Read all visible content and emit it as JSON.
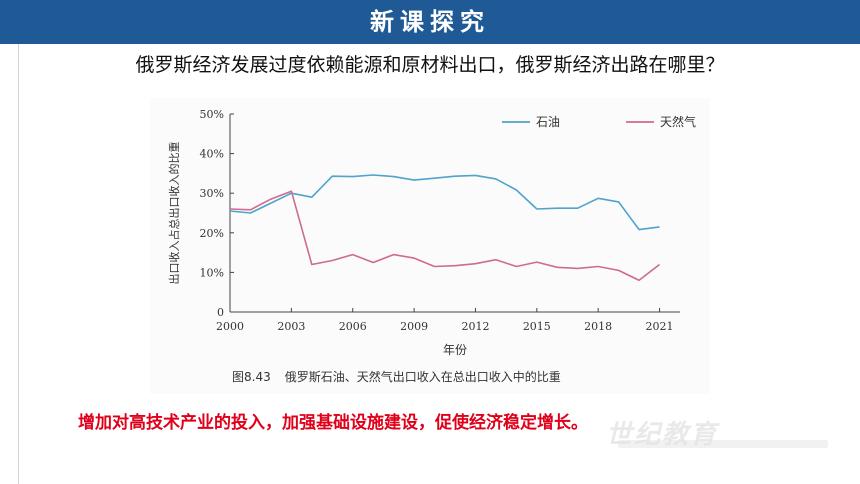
{
  "header": {
    "title": "新课探究"
  },
  "question": "俄罗斯经济发展过度依赖能源和原材料出口，俄罗斯经济出路在哪里？",
  "figure": {
    "number": "图8.43",
    "caption": "俄罗斯石油、天然气出口收入在总出口收入中的比重"
  },
  "conclusion": "增加对高技术产业的投入，加强基础设施建设，促使经济稳定增长。",
  "colors": {
    "banner": "#1f5a96",
    "oil": "#4fa3cc",
    "gas": "#cf6a93",
    "conclusion": "#e0001a"
  },
  "chart_data": {
    "type": "line",
    "xlabel": "年份",
    "ylabel": "出口收入占总出口收入的比重",
    "xlim": [
      2000,
      2022
    ],
    "ylim": [
      0,
      50
    ],
    "x_ticks": [
      2000,
      2003,
      2006,
      2009,
      2012,
      2015,
      2018,
      2021
    ],
    "y_ticks": [
      0,
      10,
      20,
      30,
      40,
      50
    ],
    "y_tick_labels": [
      "0",
      "10%",
      "20%",
      "30%",
      "40%",
      "50%"
    ],
    "legend_position": "top-right",
    "grid": false,
    "series": [
      {
        "name": "石油",
        "color": "#4fa3cc",
        "x": [
          2000,
          2001,
          2002,
          2003,
          2004,
          2005,
          2006,
          2007,
          2008,
          2009,
          2010,
          2011,
          2012,
          2013,
          2014,
          2015,
          2016,
          2017,
          2018,
          2019,
          2020,
          2021
        ],
        "y": [
          25.5,
          25,
          27.5,
          30,
          29,
          34.3,
          34.2,
          34.6,
          34.2,
          33.3,
          33.8,
          34.3,
          34.5,
          33.6,
          30.8,
          26,
          26.2,
          26.2,
          28.7,
          27.8,
          20.8,
          21.5
        ]
      },
      {
        "name": "天然气",
        "color": "#cf6a93",
        "x": [
          2000,
          2001,
          2002,
          2003,
          2004,
          2005,
          2006,
          2007,
          2008,
          2009,
          2010,
          2011,
          2012,
          2013,
          2014,
          2015,
          2016,
          2017,
          2018,
          2019,
          2020,
          2021
        ],
        "y": [
          26,
          25.8,
          28.5,
          30.5,
          12,
          13,
          14.5,
          12.5,
          14.5,
          13.6,
          11.5,
          11.7,
          12.2,
          13.2,
          11.5,
          12.6,
          11.3,
          11,
          11.5,
          10.5,
          8,
          12
        ]
      }
    ]
  }
}
